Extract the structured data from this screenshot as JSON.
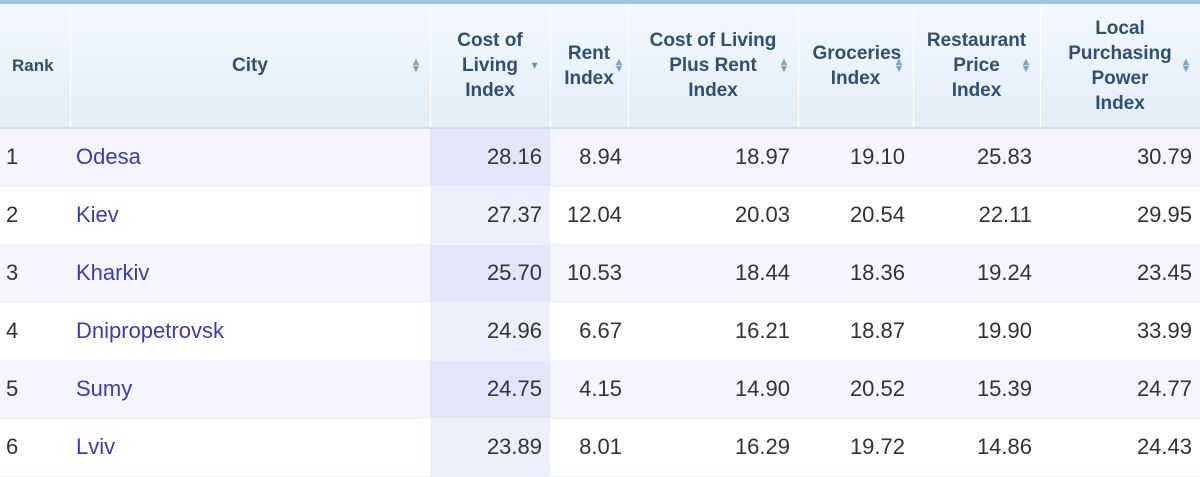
{
  "table": {
    "headers": {
      "rank": "Rank",
      "city": "City",
      "cost_of_living": "Cost of Living Index",
      "rent": "Rent Index",
      "cost_plus_rent": "Cost of Living Plus Rent Index",
      "groceries": "Groceries Index",
      "restaurant": "Restaurant Price Index",
      "purchasing_power": "Local Purchasing Power Index"
    },
    "sorted_column": "cost_of_living",
    "sort_direction": "descending",
    "rows": [
      {
        "rank": "1",
        "city": "Odesa",
        "cost_of_living": "28.16",
        "rent": "8.94",
        "cost_plus_rent": "18.97",
        "groceries": "19.10",
        "restaurant": "25.83",
        "purchasing_power": "30.79"
      },
      {
        "rank": "2",
        "city": "Kiev",
        "cost_of_living": "27.37",
        "rent": "12.04",
        "cost_plus_rent": "20.03",
        "groceries": "20.54",
        "restaurant": "22.11",
        "purchasing_power": "29.95"
      },
      {
        "rank": "3",
        "city": "Kharkiv",
        "cost_of_living": "25.70",
        "rent": "10.53",
        "cost_plus_rent": "18.44",
        "groceries": "18.36",
        "restaurant": "19.24",
        "purchasing_power": "23.45"
      },
      {
        "rank": "4",
        "city": "Dnipropetrovsk",
        "cost_of_living": "24.96",
        "rent": "6.67",
        "cost_plus_rent": "16.21",
        "groceries": "18.87",
        "restaurant": "19.90",
        "purchasing_power": "33.99"
      },
      {
        "rank": "5",
        "city": "Sumy",
        "cost_of_living": "24.75",
        "rent": "4.15",
        "cost_plus_rent": "14.90",
        "groceries": "20.52",
        "restaurant": "15.39",
        "purchasing_power": "24.77"
      },
      {
        "rank": "6",
        "city": "Lviv",
        "cost_of_living": "23.89",
        "rent": "8.01",
        "cost_plus_rent": "16.29",
        "groceries": "19.72",
        "restaurant": "14.86",
        "purchasing_power": "24.43"
      }
    ]
  },
  "colors": {
    "header_text": "#2f4f73",
    "city_link": "#3b3bb3",
    "sorted_column_bg": "#e3e5fa"
  }
}
